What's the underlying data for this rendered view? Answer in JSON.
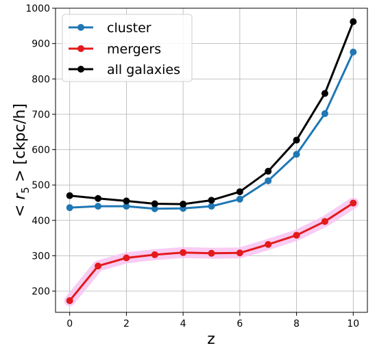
{
  "chart_data": {
    "type": "line",
    "xlabel": "z",
    "ylabel_parts": [
      "< ",
      "r",
      "5",
      " >  [ckpc/h]"
    ],
    "xlim": [
      -0.5,
      10.5
    ],
    "ylim": [
      140,
      1000
    ],
    "x_ticks": [
      0,
      2,
      4,
      6,
      8,
      10
    ],
    "y_ticks": [
      200,
      300,
      400,
      500,
      600,
      700,
      800,
      900,
      1000
    ],
    "grid": true,
    "legend_position": "top-left",
    "x": [
      0,
      1,
      2,
      3,
      4,
      5,
      6,
      7,
      8,
      9,
      10
    ],
    "series": [
      {
        "name": "cluster",
        "color": "#1f77b4",
        "values": [
          436,
          440,
          440,
          433,
          434,
          440,
          460,
          512,
          587,
          702,
          876
        ]
      },
      {
        "name": "mergers",
        "color": "#e31a1c",
        "band_color": "#f7c6f2",
        "values": [
          173,
          271,
          294,
          303,
          309,
          307,
          308,
          332,
          358,
          397,
          449
        ]
      },
      {
        "name": "all galaxies",
        "color": "#000000",
        "values": [
          470,
          462,
          455,
          447,
          446,
          457,
          481,
          539,
          627,
          759,
          962
        ]
      }
    ]
  }
}
